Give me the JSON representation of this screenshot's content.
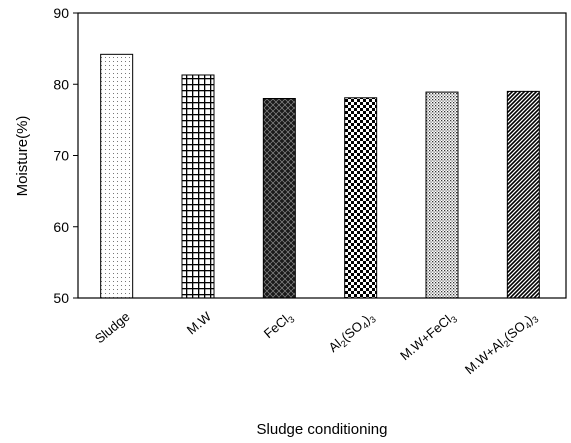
{
  "chart_data": {
    "type": "bar",
    "title": "",
    "xlabel": "Sludge conditioning",
    "ylabel": "Moisture(%)",
    "ylim": [
      50,
      90
    ],
    "yticks": [
      50,
      60,
      70,
      80,
      90
    ],
    "ytick_labels": [
      "50",
      "60",
      "70",
      "80",
      "90"
    ],
    "grid": false,
    "legend": "none",
    "categories": [
      "Sludge",
      "M.W",
      "FeCl3",
      "Al2(SO4)3",
      "M.W+FeCl3",
      "M.W+Al2(SO4)3"
    ],
    "category_labels": [
      [
        {
          "t": "Sludge",
          "sub": false
        }
      ],
      [
        {
          "t": "M.W",
          "sub": false
        }
      ],
      [
        {
          "t": "FeCl",
          "sub": false
        },
        {
          "t": "3",
          "sub": true
        }
      ],
      [
        {
          "t": "Al",
          "sub": false
        },
        {
          "t": "2",
          "sub": true
        },
        {
          "t": "(SO",
          "sub": false
        },
        {
          "t": "4",
          "sub": true
        },
        {
          "t": ")",
          "sub": false
        },
        {
          "t": "3",
          "sub": true
        }
      ],
      [
        {
          "t": "M.W+FeCl",
          "sub": false
        },
        {
          "t": "3",
          "sub": true
        }
      ],
      [
        {
          "t": "M.W+Al",
          "sub": false
        },
        {
          "t": "2",
          "sub": true
        },
        {
          "t": "(SO",
          "sub": false
        },
        {
          "t": "4",
          "sub": true
        },
        {
          "t": ")",
          "sub": false
        },
        {
          "t": "3",
          "sub": true
        }
      ]
    ],
    "values": [
      84.2,
      81.3,
      78.0,
      78.1,
      78.9,
      79.0
    ],
    "patterns": [
      "dots-light",
      "grid",
      "dark-crosshatch",
      "checker",
      "dots-dense",
      "diagonal-dense"
    ]
  }
}
